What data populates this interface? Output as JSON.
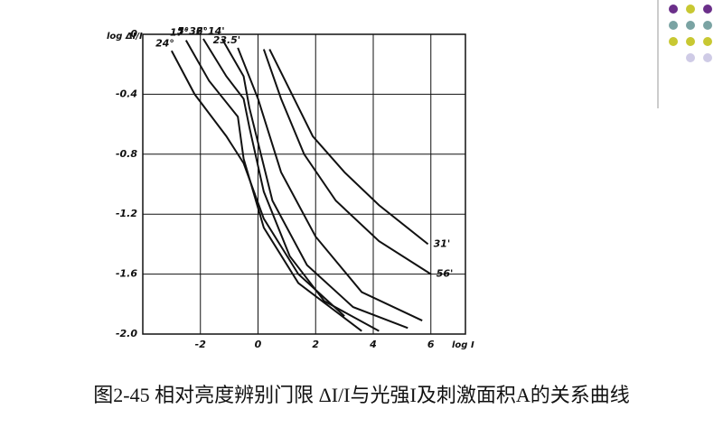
{
  "chart_data": {
    "type": "line",
    "y_label": "log ΔI/I",
    "x_label": "log I",
    "xlim": [
      -4,
      7.2
    ],
    "xticks": [
      -2,
      0,
      2,
      4,
      6
    ],
    "ylim": [
      -2,
      0
    ],
    "yticks": [
      0,
      -0.4,
      -0.8,
      -1.2,
      -1.6,
      {
        "value": -2,
        "label": "-2.0"
      }
    ],
    "grid": true,
    "series": [
      {
        "name": "31'",
        "color": "#111111",
        "x": [
          0.4,
          1.1,
          1.9,
          3,
          4.2,
          5.9
        ],
        "values": [
          -0.1,
          -0.37,
          -0.68,
          -0.92,
          -1.14,
          -1.4
        ]
      },
      {
        "name": "56'",
        "color": "#111111",
        "x": [
          0.2,
          0.8,
          1.6,
          2.7,
          4.2,
          6
        ],
        "values": [
          -0.1,
          -0.43,
          -0.8,
          -1.11,
          -1.38,
          -1.6
        ]
      },
      {
        "name": "23.5'",
        "color": "#111111",
        "x": [
          -0.7,
          0,
          0.8,
          2,
          3.6,
          5.7
        ],
        "values": [
          -0.09,
          -0.43,
          -0.92,
          -1.35,
          -1.72,
          -1.91
        ]
      },
      {
        "name": "2°14'",
        "color": "#111111",
        "x": [
          -1.25,
          -0.5,
          -0.3,
          0.5,
          1.7,
          3.3,
          5.2
        ],
        "values": [
          -0.03,
          -0.28,
          -0.49,
          -1.11,
          -1.54,
          -1.82,
          -1.96
        ]
      },
      {
        "name": "5°36'",
        "color": "#111111",
        "x": [
          -1.9,
          -1.1,
          -0.5,
          -0.3,
          0.2,
          1.1,
          2.3,
          4.2
        ],
        "values": [
          -0.03,
          -0.28,
          -0.43,
          -0.62,
          -1.05,
          -1.48,
          -1.78,
          -1.98
        ]
      },
      {
        "name": "17°",
        "color": "#111111",
        "x": [
          -2.5,
          -1.7,
          -0.7,
          -0.5,
          0.2,
          1.4,
          3.6
        ],
        "values": [
          -0.04,
          -0.31,
          -0.55,
          -0.83,
          -1.29,
          -1.66,
          -1.98
        ]
      },
      {
        "name": "24°",
        "color": "#111111",
        "x": [
          -3,
          -2.2,
          -1.1,
          -0.5,
          0.2,
          1.4,
          3
        ],
        "values": [
          -0.11,
          -0.4,
          -0.68,
          -0.86,
          -1.23,
          -1.6,
          -1.88
        ]
      }
    ],
    "caption": "图2-45 相对亮度辨别门限 ΔI/I与光强I及刺激面积A的关系曲线"
  }
}
